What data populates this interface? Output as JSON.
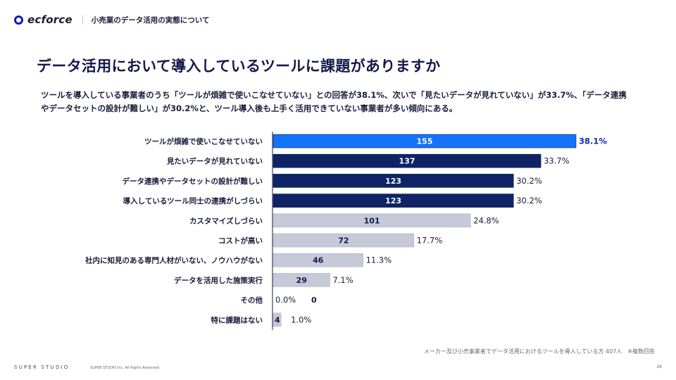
{
  "header": {
    "logo_icon": "ring-logo-icon",
    "brand": "ecforce",
    "section_title": "小売業のデータ活用の実態について"
  },
  "page_title": "データ活用において導入しているツールに課題がありますか",
  "summary": "ツールを導入している事業者のうち「ツールが煩雑で使いこなせていない」との回答が38.1%、次いで「見たいデータが見れていない」が33.7%、「データ連携やデータセットの設計が難しい」が30.2%と、ツール導入後も上手く活用できていない事業者が多い傾向にある。",
  "colors": {
    "highlight": "#1473fb",
    "primary": "#0f2466",
    "secondary": "#c6c9d8",
    "highlight_label": "#0b2fb8"
  },
  "chart_data": {
    "type": "bar",
    "orientation": "horizontal",
    "title": "",
    "xlabel": "",
    "ylabel": "",
    "categories": [
      "ツールが煩雑で使いこなせていない",
      "見たいデータが見れていない",
      "データ連携やデータセットの設計が難しい",
      "導入しているツール同士の連携がしづらい",
      "カスタマイズしづらい",
      "コストが高い",
      "社内に知見のある専門人材がいない、ノウハウがない",
      "データを活用した施策実行",
      "その他",
      "特に課題はない"
    ],
    "values": [
      155,
      137,
      123,
      123,
      101,
      72,
      46,
      29,
      0,
      4
    ],
    "percentages": [
      "38.1%",
      "33.7%",
      "30.2%",
      "30.2%",
      "24.8%",
      "17.7%",
      "11.3%",
      "7.1%",
      "0.0%",
      "1.0%"
    ],
    "color_groups": [
      "highlight",
      "primary",
      "primary",
      "primary",
      "secondary",
      "secondary",
      "secondary",
      "secondary",
      "secondary",
      "secondary"
    ],
    "xlim": [
      0,
      155
    ],
    "grid": false,
    "legend": "none"
  },
  "footer": {
    "source_note": "メーカー及び小売事業者でデータ活用におけるツールを導入している方 407人　※複数回答",
    "brand": "SUPER STUDIO",
    "copyright": "SUPER STUDIO Inc. All Rights Reserved.",
    "page_number": "26"
  }
}
